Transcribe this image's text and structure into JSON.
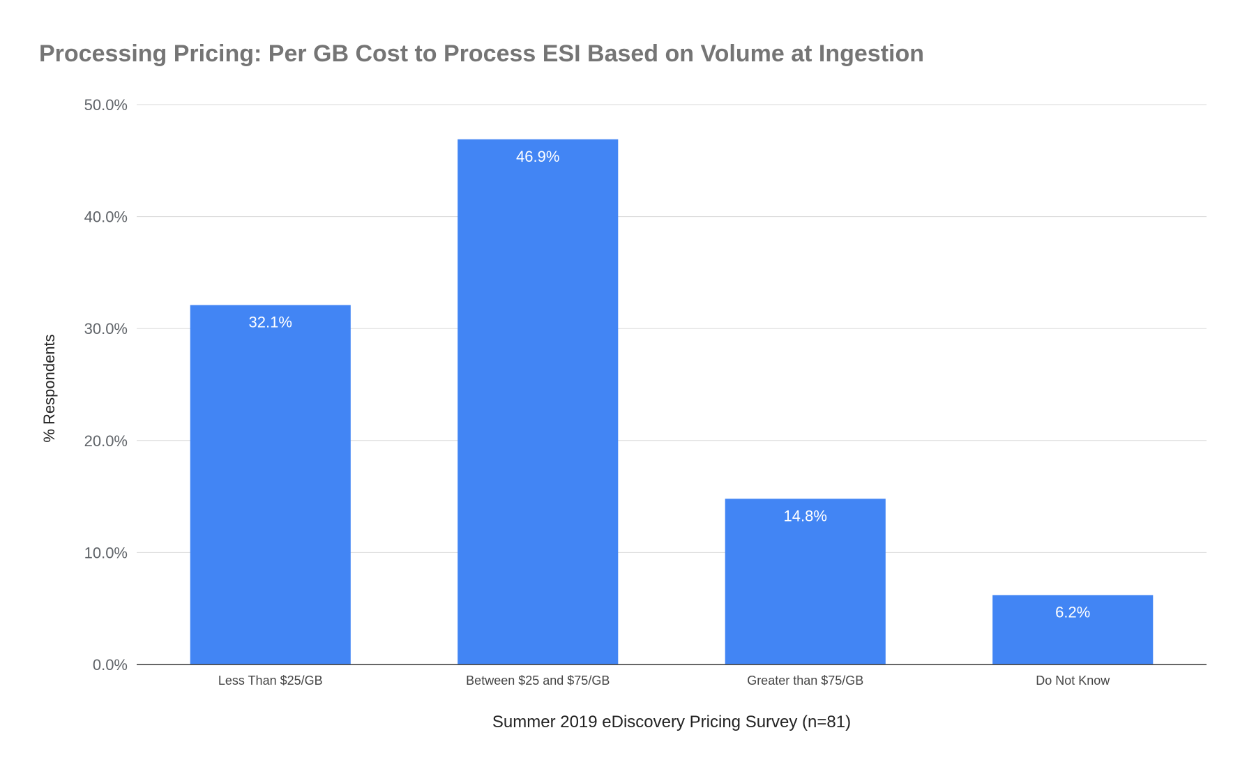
{
  "chart_data": {
    "type": "bar",
    "title": "Processing Pricing: Per GB Cost to Process ESI Based on Volume at Ingestion",
    "xlabel": "Summer 2019 eDiscovery Pricing Survey (n=81)",
    "ylabel": "% Respondents",
    "categories": [
      "Less Than $25/GB",
      "Between $25 and $75/GB",
      "Greater than $75/GB",
      "Do Not Know"
    ],
    "values": [
      32.1,
      46.9,
      14.8,
      6.2
    ],
    "value_labels": [
      "32.1%",
      "46.9%",
      "14.8%",
      "6.2%"
    ],
    "ylim": [
      0,
      50
    ],
    "yticks": [
      0,
      10,
      20,
      30,
      40,
      50
    ],
    "ytick_labels": [
      "0.0%",
      "10.0%",
      "20.0%",
      "30.0%",
      "40.0%",
      "50.0%"
    ],
    "grid": true,
    "legend": "none",
    "bar_color": "#4285f4"
  }
}
